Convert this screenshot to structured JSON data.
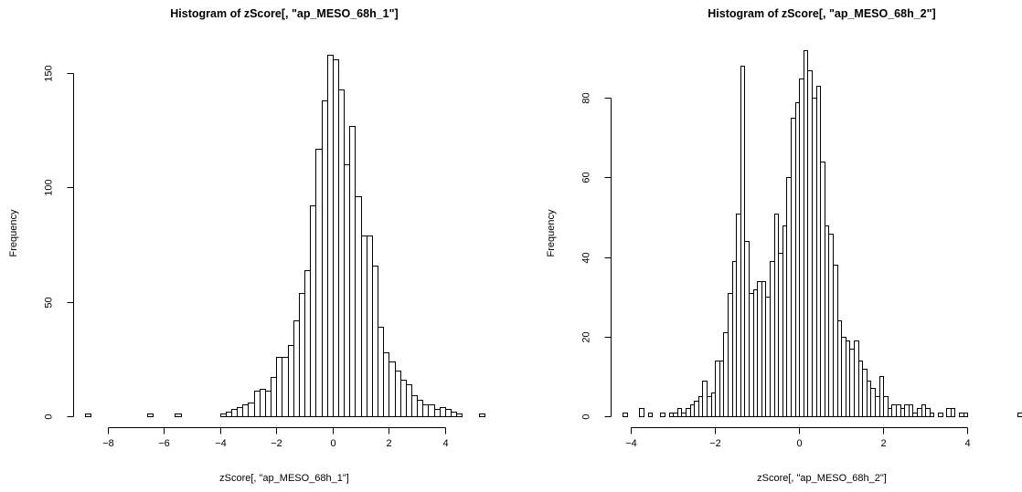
{
  "chart_data": [
    {
      "type": "bar",
      "title": "Histogram of zScore[, \"ap_MESO_68h_1\"]",
      "xlabel": "zScore[, \"ap_MESO_68h_1\"]",
      "ylabel": "Frequency",
      "binwidth": 0.2,
      "xlim": [
        -8.8,
        5.4
      ],
      "ylim": [
        0,
        160
      ],
      "xticks": [
        -8,
        -6,
        -4,
        -2,
        0,
        2,
        4
      ],
      "yticks": [
        0,
        50,
        100,
        150
      ],
      "bins": [
        {
          "x0": -8.8,
          "count": 1
        },
        {
          "x0": -6.6,
          "count": 1
        },
        {
          "x0": -5.6,
          "count": 1
        },
        {
          "x0": -4.0,
          "count": 1
        },
        {
          "x0": -3.8,
          "count": 2
        },
        {
          "x0": -3.6,
          "count": 3
        },
        {
          "x0": -3.4,
          "count": 4
        },
        {
          "x0": -3.2,
          "count": 5
        },
        {
          "x0": -3.0,
          "count": 6
        },
        {
          "x0": -2.8,
          "count": 11
        },
        {
          "x0": -2.6,
          "count": 12
        },
        {
          "x0": -2.4,
          "count": 11
        },
        {
          "x0": -2.2,
          "count": 17
        },
        {
          "x0": -2.0,
          "count": 26
        },
        {
          "x0": -1.8,
          "count": 26
        },
        {
          "x0": -1.6,
          "count": 31
        },
        {
          "x0": -1.4,
          "count": 42
        },
        {
          "x0": -1.2,
          "count": 54
        },
        {
          "x0": -1.0,
          "count": 64
        },
        {
          "x0": -0.8,
          "count": 92
        },
        {
          "x0": -0.6,
          "count": 117
        },
        {
          "x0": -0.4,
          "count": 138
        },
        {
          "x0": -0.2,
          "count": 158
        },
        {
          "x0": 0.0,
          "count": 156
        },
        {
          "x0": 0.2,
          "count": 143
        },
        {
          "x0": 0.4,
          "count": 110
        },
        {
          "x0": 0.6,
          "count": 127
        },
        {
          "x0": 0.8,
          "count": 96
        },
        {
          "x0": 1.0,
          "count": 79
        },
        {
          "x0": 1.2,
          "count": 79
        },
        {
          "x0": 1.4,
          "count": 66
        },
        {
          "x0": 1.6,
          "count": 39
        },
        {
          "x0": 1.8,
          "count": 28
        },
        {
          "x0": 2.0,
          "count": 24
        },
        {
          "x0": 2.2,
          "count": 20
        },
        {
          "x0": 2.4,
          "count": 16
        },
        {
          "x0": 2.6,
          "count": 14
        },
        {
          "x0": 2.8,
          "count": 9
        },
        {
          "x0": 3.0,
          "count": 7
        },
        {
          "x0": 3.2,
          "count": 5
        },
        {
          "x0": 3.4,
          "count": 5
        },
        {
          "x0": 3.6,
          "count": 3
        },
        {
          "x0": 3.8,
          "count": 4
        },
        {
          "x0": 4.0,
          "count": 3
        },
        {
          "x0": 4.2,
          "count": 2
        },
        {
          "x0": 4.4,
          "count": 1
        },
        {
          "x0": 5.2,
          "count": 1
        }
      ]
    },
    {
      "type": "bar",
      "title": "Histogram of zScore[, \"ap_MESO_68h_2\"]",
      "xlabel": "zScore[, \"ap_MESO_68h_2\"]",
      "ylabel": "Frequency",
      "binwidth": 0.1,
      "xlim": [
        -4.2,
        5.3
      ],
      "ylim": [
        0,
        92
      ],
      "xticks": [
        -4,
        -2,
        0,
        2,
        4
      ],
      "yticks": [
        0,
        20,
        40,
        60,
        80
      ],
      "bins": [
        {
          "x0": -4.2,
          "count": 1
        },
        {
          "x0": -3.8,
          "count": 2
        },
        {
          "x0": -3.6,
          "count": 1
        },
        {
          "x0": -3.3,
          "count": 1
        },
        {
          "x0": -3.1,
          "count": 1
        },
        {
          "x0": -3.0,
          "count": 1
        },
        {
          "x0": -2.9,
          "count": 2
        },
        {
          "x0": -2.8,
          "count": 1
        },
        {
          "x0": -2.7,
          "count": 2
        },
        {
          "x0": -2.6,
          "count": 3
        },
        {
          "x0": -2.5,
          "count": 4
        },
        {
          "x0": -2.4,
          "count": 5
        },
        {
          "x0": -2.3,
          "count": 9
        },
        {
          "x0": -2.2,
          "count": 5
        },
        {
          "x0": -2.1,
          "count": 6
        },
        {
          "x0": -2.0,
          "count": 14
        },
        {
          "x0": -1.9,
          "count": 14
        },
        {
          "x0": -1.8,
          "count": 21
        },
        {
          "x0": -1.7,
          "count": 31
        },
        {
          "x0": -1.6,
          "count": 39
        },
        {
          "x0": -1.5,
          "count": 51
        },
        {
          "x0": -1.4,
          "count": 88
        },
        {
          "x0": -1.3,
          "count": 44
        },
        {
          "x0": -1.2,
          "count": 31
        },
        {
          "x0": -1.1,
          "count": 32
        },
        {
          "x0": -1.0,
          "count": 34
        },
        {
          "x0": -0.9,
          "count": 34
        },
        {
          "x0": -0.8,
          "count": 30
        },
        {
          "x0": -0.7,
          "count": 39
        },
        {
          "x0": -0.6,
          "count": 51
        },
        {
          "x0": -0.5,
          "count": 41
        },
        {
          "x0": -0.4,
          "count": 48
        },
        {
          "x0": -0.3,
          "count": 60
        },
        {
          "x0": -0.2,
          "count": 75
        },
        {
          "x0": -0.1,
          "count": 79
        },
        {
          "x0": 0.0,
          "count": 85
        },
        {
          "x0": 0.1,
          "count": 92
        },
        {
          "x0": 0.2,
          "count": 87
        },
        {
          "x0": 0.3,
          "count": 80
        },
        {
          "x0": 0.4,
          "count": 83
        },
        {
          "x0": 0.5,
          "count": 64
        },
        {
          "x0": 0.6,
          "count": 48
        },
        {
          "x0": 0.7,
          "count": 46
        },
        {
          "x0": 0.8,
          "count": 38
        },
        {
          "x0": 0.9,
          "count": 24
        },
        {
          "x0": 1.0,
          "count": 20
        },
        {
          "x0": 1.1,
          "count": 19
        },
        {
          "x0": 1.2,
          "count": 17
        },
        {
          "x0": 1.3,
          "count": 19
        },
        {
          "x0": 1.4,
          "count": 14
        },
        {
          "x0": 1.5,
          "count": 12
        },
        {
          "x0": 1.6,
          "count": 9
        },
        {
          "x0": 1.7,
          "count": 7
        },
        {
          "x0": 1.8,
          "count": 5
        },
        {
          "x0": 1.9,
          "count": 10
        },
        {
          "x0": 2.0,
          "count": 5
        },
        {
          "x0": 2.1,
          "count": 2
        },
        {
          "x0": 2.2,
          "count": 3
        },
        {
          "x0": 2.3,
          "count": 3
        },
        {
          "x0": 2.4,
          "count": 2
        },
        {
          "x0": 2.5,
          "count": 3
        },
        {
          "x0": 2.6,
          "count": 3
        },
        {
          "x0": 2.7,
          "count": 1
        },
        {
          "x0": 2.8,
          "count": 2
        },
        {
          "x0": 2.9,
          "count": 3
        },
        {
          "x0": 3.0,
          "count": 2
        },
        {
          "x0": 3.1,
          "count": 1
        },
        {
          "x0": 3.3,
          "count": 1
        },
        {
          "x0": 3.5,
          "count": 2
        },
        {
          "x0": 3.6,
          "count": 2
        },
        {
          "x0": 3.8,
          "count": 1
        },
        {
          "x0": 3.9,
          "count": 1
        },
        {
          "x0": 5.2,
          "count": 1
        }
      ]
    }
  ]
}
